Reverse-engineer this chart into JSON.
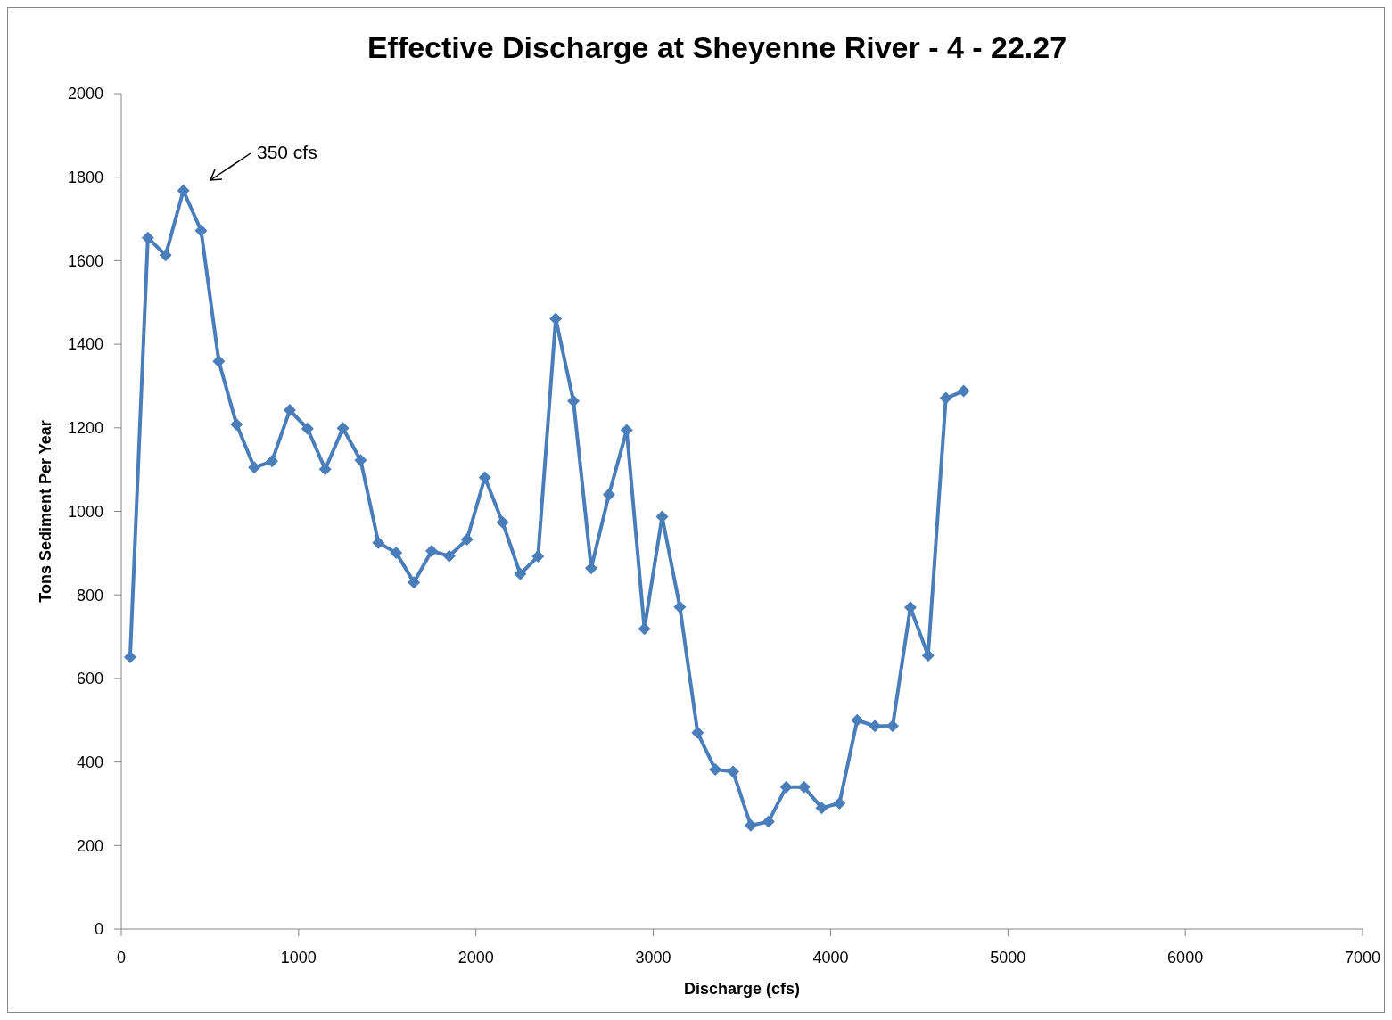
{
  "chart_data": {
    "type": "line",
    "title": "Effective Discharge at Sheyenne River - 4 - 22.27",
    "xlabel": "Discharge (cfs)",
    "ylabel": "Tons Sediment Per Year",
    "x": [
      50,
      150,
      250,
      350,
      450,
      550,
      650,
      750,
      850,
      950,
      1050,
      1150,
      1250,
      1350,
      1450,
      1550,
      1650,
      1750,
      1850,
      1950,
      2050,
      2150,
      2250,
      2350,
      2450,
      2550,
      2650,
      2750,
      2850,
      2950,
      3050,
      3150,
      3250,
      3350,
      3450,
      3550,
      3650,
      3750,
      3850,
      3950,
      4050,
      4150,
      4250,
      4350,
      4450,
      4550,
      4650,
      4750
    ],
    "series": [
      {
        "color": "#4a7ebb",
        "values": [
          651,
          1655,
          1613,
          1768,
          1672,
          1359,
          1208,
          1105,
          1120,
          1242,
          1198,
          1101,
          1199,
          1122,
          925,
          901,
          830,
          905,
          893,
          933,
          1081,
          974,
          850,
          892,
          1461,
          1264,
          864,
          1040,
          1194,
          719,
          987,
          771,
          470,
          382,
          377,
          248,
          257,
          340,
          340,
          290,
          301,
          500,
          486,
          486,
          770,
          655,
          1271,
          1288
        ]
      }
    ],
    "xlim": [
      0,
      7000
    ],
    "xticks": [
      0,
      1000,
      2000,
      3000,
      4000,
      5000,
      6000,
      7000
    ],
    "ylim": [
      0,
      2000
    ],
    "yticks": [
      0,
      200,
      400,
      600,
      800,
      1000,
      1200,
      1400,
      1600,
      1800,
      2000
    ],
    "marker": "diamond",
    "line_style": "solid",
    "grid": false,
    "annotations": [
      "350 cfs"
    ]
  }
}
